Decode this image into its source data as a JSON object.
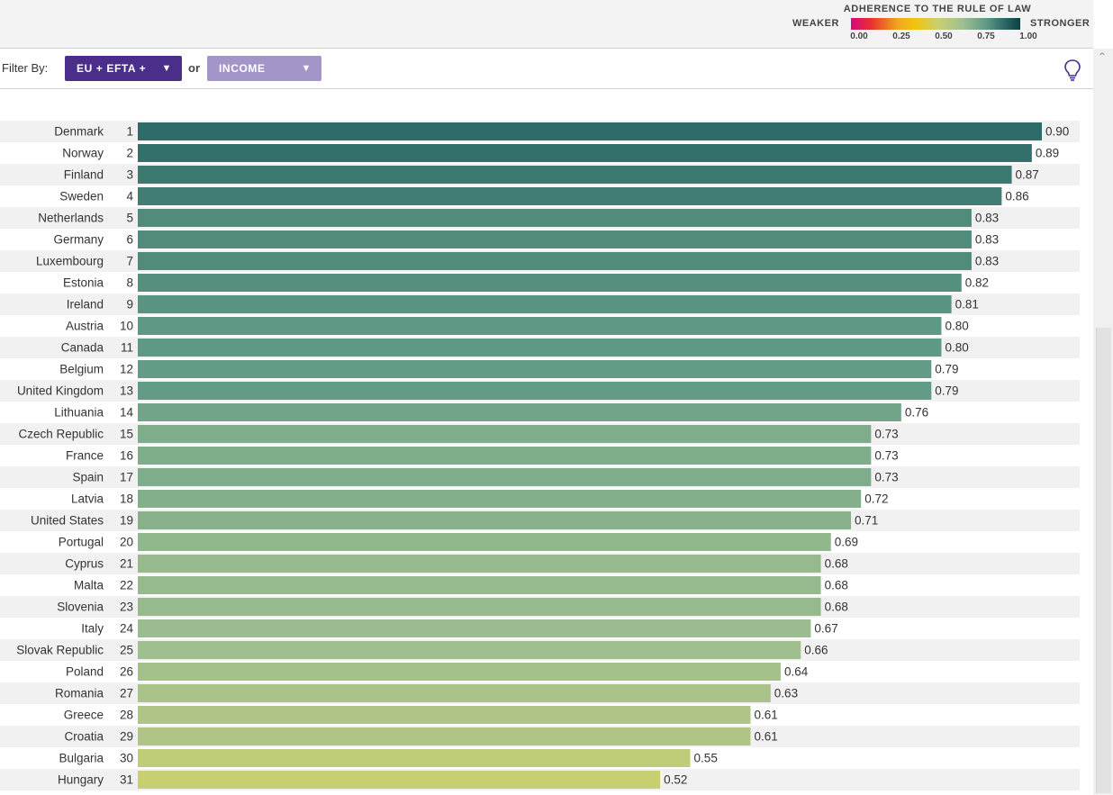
{
  "legend": {
    "title": "ADHERENCE TO THE RULE OF LAW",
    "weaker": "WEAKER",
    "stronger": "STRONGER",
    "ticks": [
      "0.00",
      "0.25",
      "0.50",
      "0.75",
      "1.00"
    ],
    "tick_values": [
      0,
      0.25,
      0.5,
      0.75,
      1
    ]
  },
  "filter": {
    "label": "Filter By:",
    "region_value": "EU + EFTA +",
    "or_label": "or",
    "income_value": "INCOME"
  },
  "icons": {
    "lightbulb": "lightbulb-icon",
    "caret": "caret-down-icon",
    "scroll_up": "chevron-up-icon"
  },
  "colors": {
    "region_dropdown": "#4a2e8a",
    "income_dropdown": "#a495c9",
    "row_stripe": "#f1f1f1"
  },
  "chart_data": {
    "type": "bar",
    "orientation": "horizontal",
    "categories": [
      "Denmark",
      "Norway",
      "Finland",
      "Sweden",
      "Netherlands",
      "Germany",
      "Luxembourg",
      "Estonia",
      "Ireland",
      "Austria",
      "Canada",
      "Belgium",
      "United Kingdom",
      "Lithuania",
      "Czech Republic",
      "France",
      "Spain",
      "Latvia",
      "United States",
      "Portugal",
      "Cyprus",
      "Malta",
      "Slovenia",
      "Italy",
      "Slovak Republic",
      "Poland",
      "Romania",
      "Greece",
      "Croatia",
      "Bulgaria",
      "Hungary"
    ],
    "ranks": [
      1,
      2,
      3,
      4,
      5,
      6,
      7,
      8,
      9,
      10,
      11,
      12,
      13,
      14,
      15,
      16,
      17,
      18,
      19,
      20,
      21,
      22,
      23,
      24,
      25,
      26,
      27,
      28,
      29,
      30,
      31
    ],
    "values": [
      0.9,
      0.89,
      0.87,
      0.86,
      0.83,
      0.83,
      0.83,
      0.82,
      0.81,
      0.8,
      0.8,
      0.79,
      0.79,
      0.76,
      0.73,
      0.73,
      0.73,
      0.72,
      0.71,
      0.69,
      0.68,
      0.68,
      0.68,
      0.67,
      0.66,
      0.64,
      0.63,
      0.61,
      0.61,
      0.55,
      0.52
    ],
    "value_labels": [
      "0.90",
      "0.89",
      "0.87",
      "0.86",
      "0.83",
      "0.83",
      "0.83",
      "0.82",
      "0.81",
      "0.80",
      "0.80",
      "0.79",
      "0.79",
      "0.76",
      "0.73",
      "0.73",
      "0.73",
      "0.72",
      "0.71",
      "0.69",
      "0.68",
      "0.68",
      "0.68",
      "0.67",
      "0.66",
      "0.64",
      "0.63",
      "0.61",
      "0.61",
      "0.55",
      "0.52"
    ],
    "xlim": [
      0.0,
      0.9
    ],
    "color_scale": "ADHERENCE TO THE RULE OF LAW",
    "grid": false
  }
}
